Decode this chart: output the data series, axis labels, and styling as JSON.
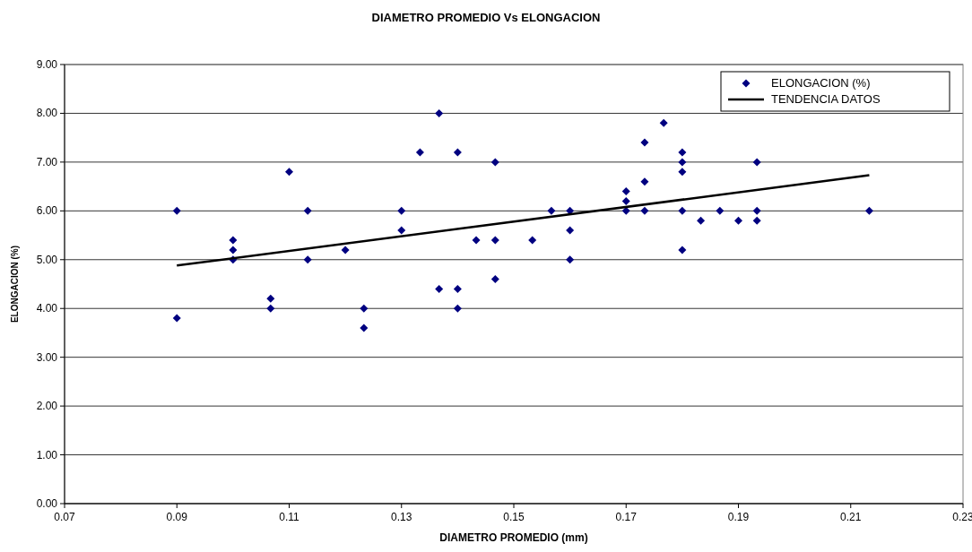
{
  "chart_data": {
    "type": "scatter",
    "title": "DIAMETRO PROMEDIO Vs ELONGACION",
    "xlabel": "DIAMETRO PROMEDIO (mm)",
    "ylabel": "ELONGACION (%)",
    "xlim": [
      0.07,
      0.23
    ],
    "xticks": [
      0.07,
      0.09,
      0.11,
      0.13,
      0.15,
      0.17,
      0.19,
      0.21,
      0.23
    ],
    "ylim": [
      0,
      9
    ],
    "yticks": [
      {
        "value": 0,
        "label": "0.00"
      },
      {
        "value": 1,
        "label": "1.00"
      },
      {
        "value": 2,
        "label": "2.00"
      },
      {
        "value": 3,
        "label": "3.00"
      },
      {
        "value": 4,
        "label": "4.00"
      },
      {
        "value": 5,
        "label": "5.00"
      },
      {
        "value": 6,
        "label": "6.00"
      },
      {
        "value": 7,
        "label": "7.00"
      },
      {
        "value": 8,
        "label": "8.00"
      },
      {
        "value": 9,
        "label": "9.00"
      }
    ],
    "grid": "y",
    "legend": "top right",
    "series": [
      {
        "name": "ELONGACION (%)",
        "marker": "diamond",
        "color": "#000080",
        "x": [
          0.09,
          0.09,
          0.1,
          0.1,
          0.1,
          0.1067,
          0.1067,
          0.11,
          0.1133,
          0.1133,
          0.12,
          0.1233,
          0.1233,
          0.13,
          0.13,
          0.1333,
          0.1367,
          0.1367,
          0.14,
          0.14,
          0.14,
          0.1433,
          0.1467,
          0.1467,
          0.1467,
          0.1533,
          0.1567,
          0.16,
          0.16,
          0.16,
          0.17,
          0.17,
          0.17,
          0.1733,
          0.1733,
          0.1733,
          0.1767,
          0.18,
          0.18,
          0.18,
          0.18,
          0.18,
          0.1833,
          0.1867,
          0.19,
          0.1933,
          0.1933,
          0.1933,
          0.2133
        ],
        "values": [
          6.0,
          3.8,
          5.4,
          5.2,
          5.0,
          4.2,
          4.0,
          6.8,
          6.0,
          5.0,
          5.2,
          4.0,
          3.6,
          6.0,
          5.6,
          7.2,
          8.0,
          4.4,
          7.2,
          4.4,
          4.0,
          5.4,
          7.0,
          5.4,
          4.6,
          5.4,
          6.0,
          6.0,
          5.6,
          5.0,
          6.4,
          6.2,
          6.0,
          7.4,
          6.6,
          6.0,
          7.8,
          7.2,
          7.0,
          6.8,
          6.0,
          5.2,
          5.8,
          6.0,
          5.8,
          7.0,
          6.0,
          5.8,
          6.0
        ]
      },
      {
        "name": "TENDENCIA DATOS",
        "type": "line",
        "color": "#000000",
        "x": [
          0.09,
          0.2133
        ],
        "values": [
          4.88,
          6.73
        ],
        "line_style": "solid",
        "marker": "none"
      }
    ]
  }
}
